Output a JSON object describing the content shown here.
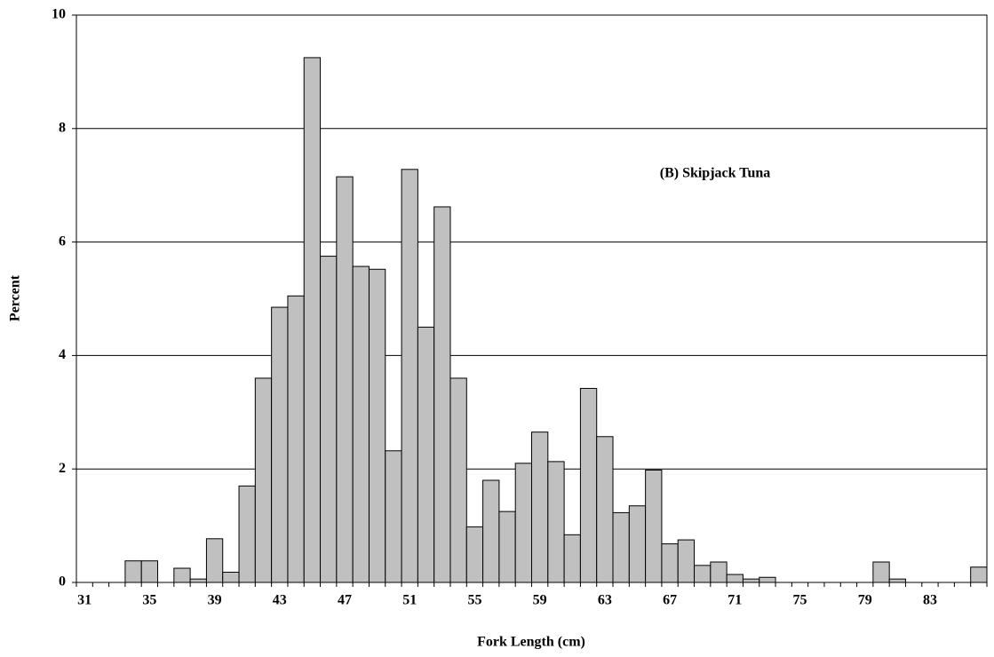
{
  "chart_data": {
    "type": "bar",
    "annotation": "(B) Skipjack Tuna",
    "xlabel": "Fork Length (cm)",
    "ylabel": "Percent",
    "categories": [
      "31",
      null,
      null,
      null,
      "35",
      null,
      null,
      null,
      "39",
      null,
      null,
      null,
      "43",
      null,
      null,
      null,
      "47",
      null,
      null,
      null,
      "51",
      null,
      null,
      null,
      "55",
      null,
      null,
      null,
      "59",
      null,
      null,
      null,
      "63",
      null,
      null,
      null,
      "67",
      null,
      null,
      null,
      "71",
      null,
      null,
      null,
      "75",
      null,
      null,
      null,
      "79",
      null,
      null,
      null,
      "83",
      null,
      null,
      null
    ],
    "values": [
      0,
      0,
      0,
      0.38,
      0.38,
      0,
      0.25,
      0.06,
      0.77,
      0.18,
      1.7,
      3.6,
      4.85,
      5.05,
      9.25,
      5.75,
      7.15,
      5.57,
      5.52,
      2.32,
      7.28,
      4.5,
      6.62,
      3.6,
      0.98,
      1.8,
      1.25,
      2.1,
      2.65,
      2.13,
      0.84,
      3.42,
      2.57,
      1.23,
      1.35,
      1.98,
      0.68,
      0.75,
      0.3,
      0.36,
      0.14,
      0.06,
      0.09,
      0,
      0,
      0,
      0,
      0,
      0,
      0.36,
      0.06,
      0,
      0,
      0,
      0,
      0.27
    ],
    "color": "#c0c0c0",
    "ylim": [
      0,
      10
    ],
    "yticks": [
      0,
      2,
      4,
      6,
      8,
      10
    ],
    "grid": true
  }
}
